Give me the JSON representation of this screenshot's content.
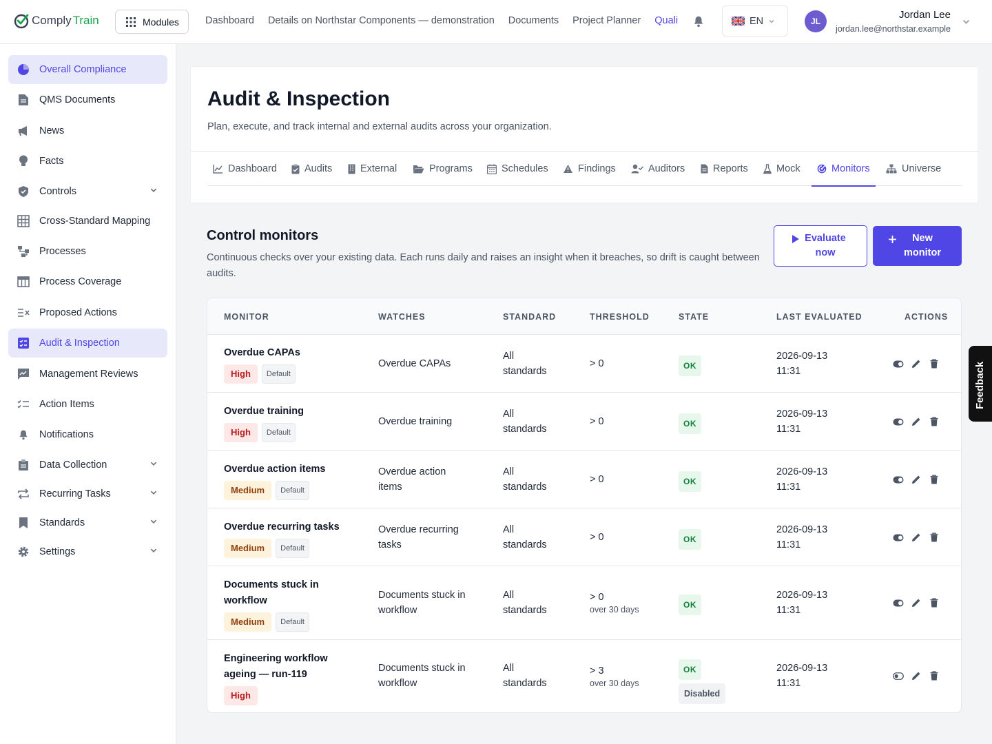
{
  "brand": {
    "part1": "Comply",
    "part2": "Train"
  },
  "topbar": {
    "modules_label": "Modules",
    "nav": [
      "Dashboard",
      "Details on Northstar Components — demonstration",
      "Documents",
      "Project Planner",
      "Quali"
    ],
    "language": "EN",
    "user": {
      "initials": "JL",
      "name": "Jordan Lee",
      "email": "jordan.lee@northstar.example"
    }
  },
  "sidebar": {
    "items": [
      {
        "label": "Overall Compliance"
      },
      {
        "label": "QMS Documents"
      },
      {
        "label": "News"
      },
      {
        "label": "Facts"
      },
      {
        "label": "Controls"
      },
      {
        "label": "Cross-Standard Mapping"
      },
      {
        "label": "Processes"
      },
      {
        "label": "Process Coverage"
      },
      {
        "label": "Proposed Actions"
      },
      {
        "label": "Audit & Inspection"
      },
      {
        "label": "Management Reviews"
      },
      {
        "label": "Action Items"
      },
      {
        "label": "Notifications"
      },
      {
        "label": "Data Collection"
      },
      {
        "label": "Recurring Tasks"
      },
      {
        "label": "Standards"
      },
      {
        "label": "Settings"
      }
    ]
  },
  "page": {
    "title": "Audit & Inspection",
    "subtitle": "Plan, execute, and track internal and external audits across your organization."
  },
  "tabs": [
    "Dashboard",
    "Audits",
    "External",
    "Programs",
    "Schedules",
    "Findings",
    "Auditors",
    "Reports",
    "Mock",
    "Monitors",
    "Universe"
  ],
  "section": {
    "title": "Control monitors",
    "description": "Continuous checks over your existing data. Each runs daily and raises an insight when it breaches, so drift is caught between audits.",
    "evaluate_label": "Evaluate now",
    "new_label": "New monitor"
  },
  "table": {
    "headers": [
      "MONITOR",
      "WATCHES",
      "STANDARD",
      "THRESHOLD",
      "STATE",
      "LAST EVALUATED",
      "ACTIONS"
    ],
    "rows": [
      {
        "name": "Overdue CAPAs",
        "severity": "High",
        "default": "Default",
        "watches": "Overdue CAPAs",
        "standard": "All standards",
        "threshold": "> 0",
        "threshold_sub": "",
        "state": "OK",
        "state2": "",
        "last": "2026-09-13 11:31"
      },
      {
        "name": "Overdue training",
        "severity": "High",
        "default": "Default",
        "watches": "Overdue training",
        "standard": "All standards",
        "threshold": "> 0",
        "threshold_sub": "",
        "state": "OK",
        "state2": "",
        "last": "2026-09-13 11:31"
      },
      {
        "name": "Overdue action items",
        "severity": "Medium",
        "default": "Default",
        "watches": "Overdue action items",
        "standard": "All standards",
        "threshold": "> 0",
        "threshold_sub": "",
        "state": "OK",
        "state2": "",
        "last": "2026-09-13 11:31"
      },
      {
        "name": "Overdue recurring tasks",
        "severity": "Medium",
        "default": "Default",
        "watches": "Overdue recurring tasks",
        "standard": "All standards",
        "threshold": "> 0",
        "threshold_sub": "",
        "state": "OK",
        "state2": "",
        "last": "2026-09-13 11:31"
      },
      {
        "name": "Documents stuck in workflow",
        "severity": "Medium",
        "default": "Default",
        "watches": "Documents stuck in workflow",
        "standard": "All standards",
        "threshold": "> 0",
        "threshold_sub": "over 30 days",
        "state": "OK",
        "state2": "",
        "last": "2026-09-13 11:31"
      },
      {
        "name": "Engineering workflow ageing — run-119",
        "severity": "High",
        "default": "",
        "watches": "Documents stuck in workflow",
        "standard": "All standards",
        "threshold": "> 3",
        "threshold_sub": "over 30 days",
        "state": "OK",
        "state2": "Disabled",
        "last": "2026-09-13 11:31"
      }
    ]
  },
  "feedback_label": "Feedback",
  "colors": {
    "accent": "#4f46e5",
    "ok": "#15803d",
    "high": "#b91c1c",
    "medium": "#92400e"
  }
}
